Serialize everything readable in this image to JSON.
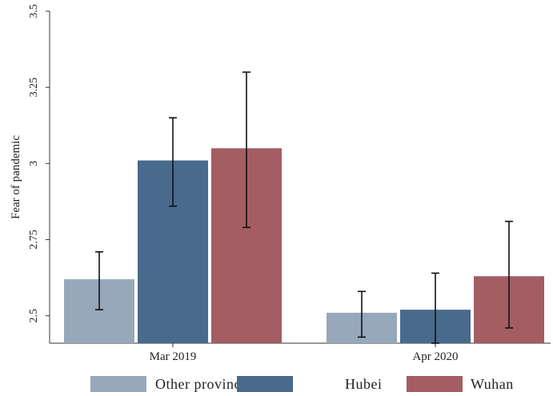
{
  "chart_data": {
    "type": "bar",
    "title": "",
    "xlabel": "",
    "ylabel": "Fear of pandemic",
    "categories": [
      "Mar 2019",
      "Apr 2020"
    ],
    "series": [
      {
        "name": "Other provinces",
        "color": "#97a8bb",
        "values": [
          2.62,
          2.51
        ],
        "ci_low": [
          2.52,
          2.43
        ],
        "ci_high": [
          2.71,
          2.58
        ]
      },
      {
        "name": "Hubei",
        "color": "#486a8c",
        "values": [
          3.01,
          2.52
        ],
        "ci_low": [
          2.86,
          2.41
        ],
        "ci_high": [
          3.15,
          2.64
        ]
      },
      {
        "name": "Wuhan",
        "color": "#a35d63",
        "values": [
          3.05,
          2.63
        ],
        "ci_low": [
          2.79,
          2.46
        ],
        "ci_high": [
          3.3,
          2.81
        ]
      }
    ],
    "yticks": [
      2.5,
      2.75,
      3,
      3.25,
      3.5
    ],
    "ytick_labels": [
      "2.5",
      "2.75",
      "3",
      "3.25",
      "3.5"
    ],
    "ylim": [
      2.41,
      3.5
    ],
    "grid": false,
    "error_bars": true,
    "legend_position": "bottom"
  }
}
